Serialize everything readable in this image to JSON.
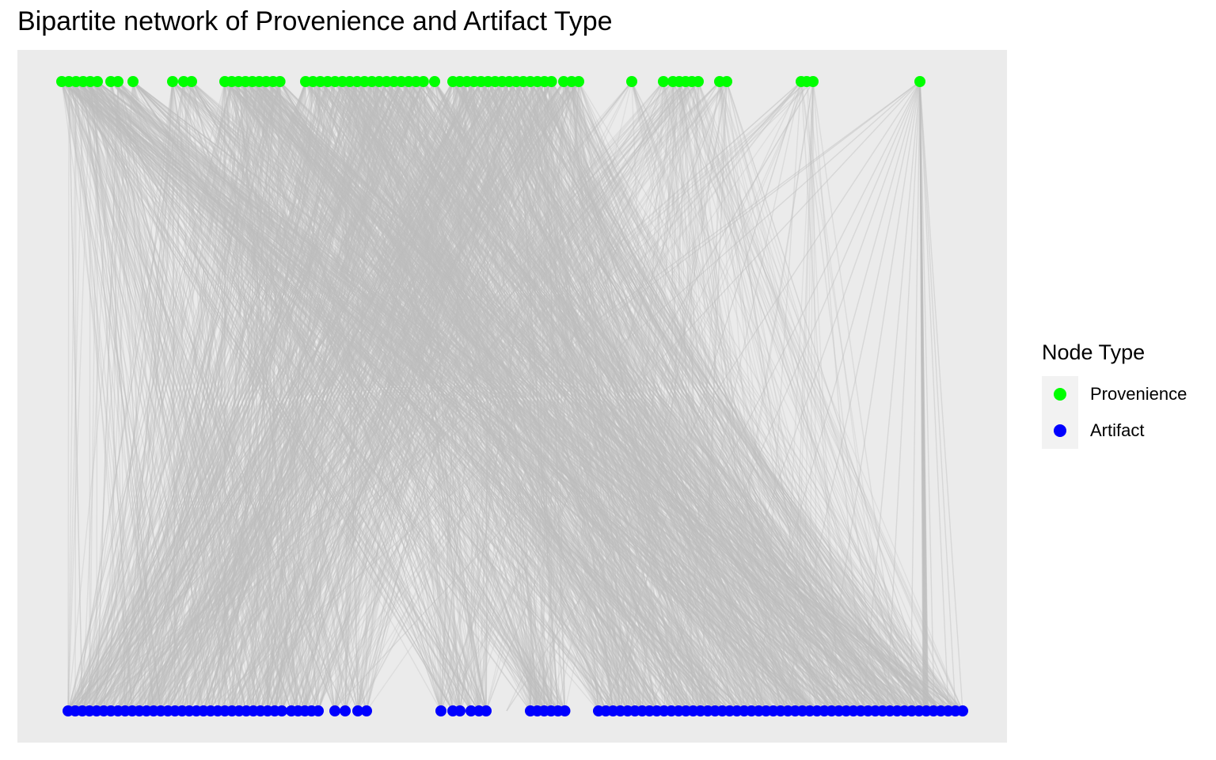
{
  "chart_data": {
    "type": "bipartite-network",
    "title": "Bipartite network of Provenience and Artifact Type",
    "xlabel": "",
    "ylabel": "",
    "grid": false,
    "legend": {
      "title": "Node Type",
      "placement": "right",
      "entries": [
        {
          "label": "Provenience",
          "color": "#00ff00"
        },
        {
          "label": "Artifact",
          "color": "#0000ff"
        }
      ]
    },
    "panel_background": "#ebebeb",
    "edge_color": "#bebebe",
    "node_types": {
      "provenience": {
        "name": "Provenience",
        "color": "#00ff00"
      },
      "artifact": {
        "name": "Artifact",
        "color": "#0000ff"
      }
    }
  }
}
